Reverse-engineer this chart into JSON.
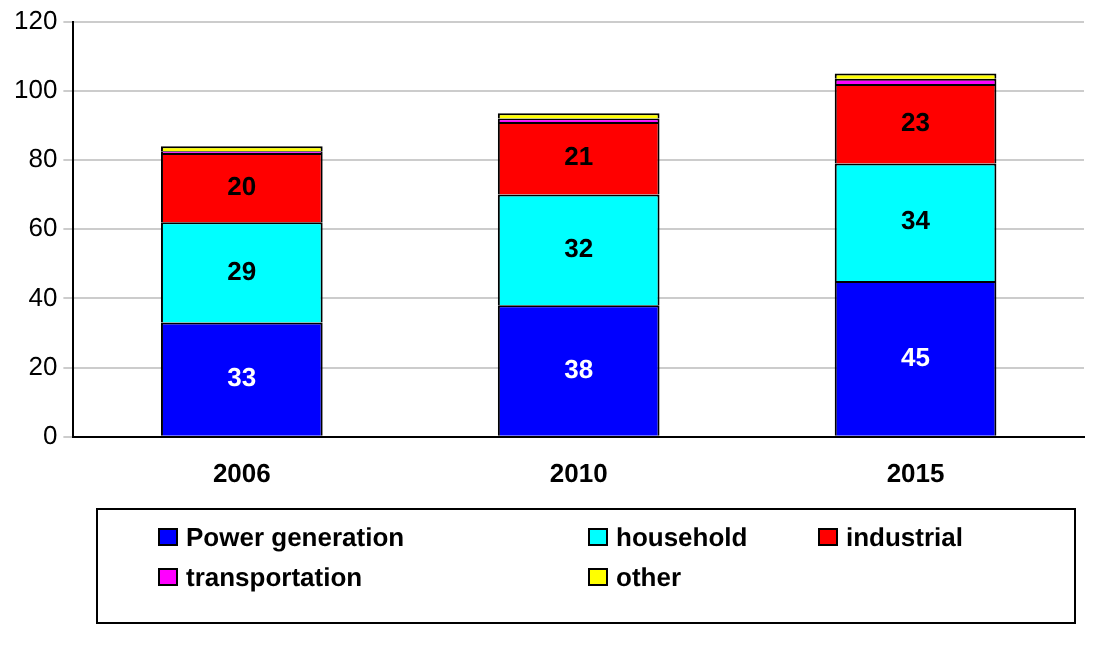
{
  "chart_data": {
    "type": "bar",
    "stacked": true,
    "categories": [
      "2006",
      "2010",
      "2015"
    ],
    "series": [
      {
        "name": "Power generation",
        "color": "#0000ff",
        "values": [
          33,
          38,
          45
        ],
        "value_labels": [
          "33",
          "38",
          "45"
        ]
      },
      {
        "name": "household",
        "color": "#00ffff",
        "values": [
          29,
          32,
          34
        ],
        "value_labels": [
          "29",
          "32",
          "34"
        ]
      },
      {
        "name": "industrial",
        "color": "#ff0000",
        "values": [
          20,
          21,
          23
        ],
        "value_labels": [
          "20",
          "21",
          "23"
        ]
      },
      {
        "name": "transportation",
        "color": "#ff00ff",
        "values": [
          0.5,
          1,
          1.5
        ]
      },
      {
        "name": "other",
        "color": "#ffff00",
        "values": [
          1.5,
          1.5,
          1.5
        ]
      }
    ],
    "ylim": [
      0,
      120
    ],
    "yticks": [
      0,
      20,
      40,
      60,
      80,
      100,
      120
    ],
    "grid": "y",
    "legend": "bottom"
  }
}
